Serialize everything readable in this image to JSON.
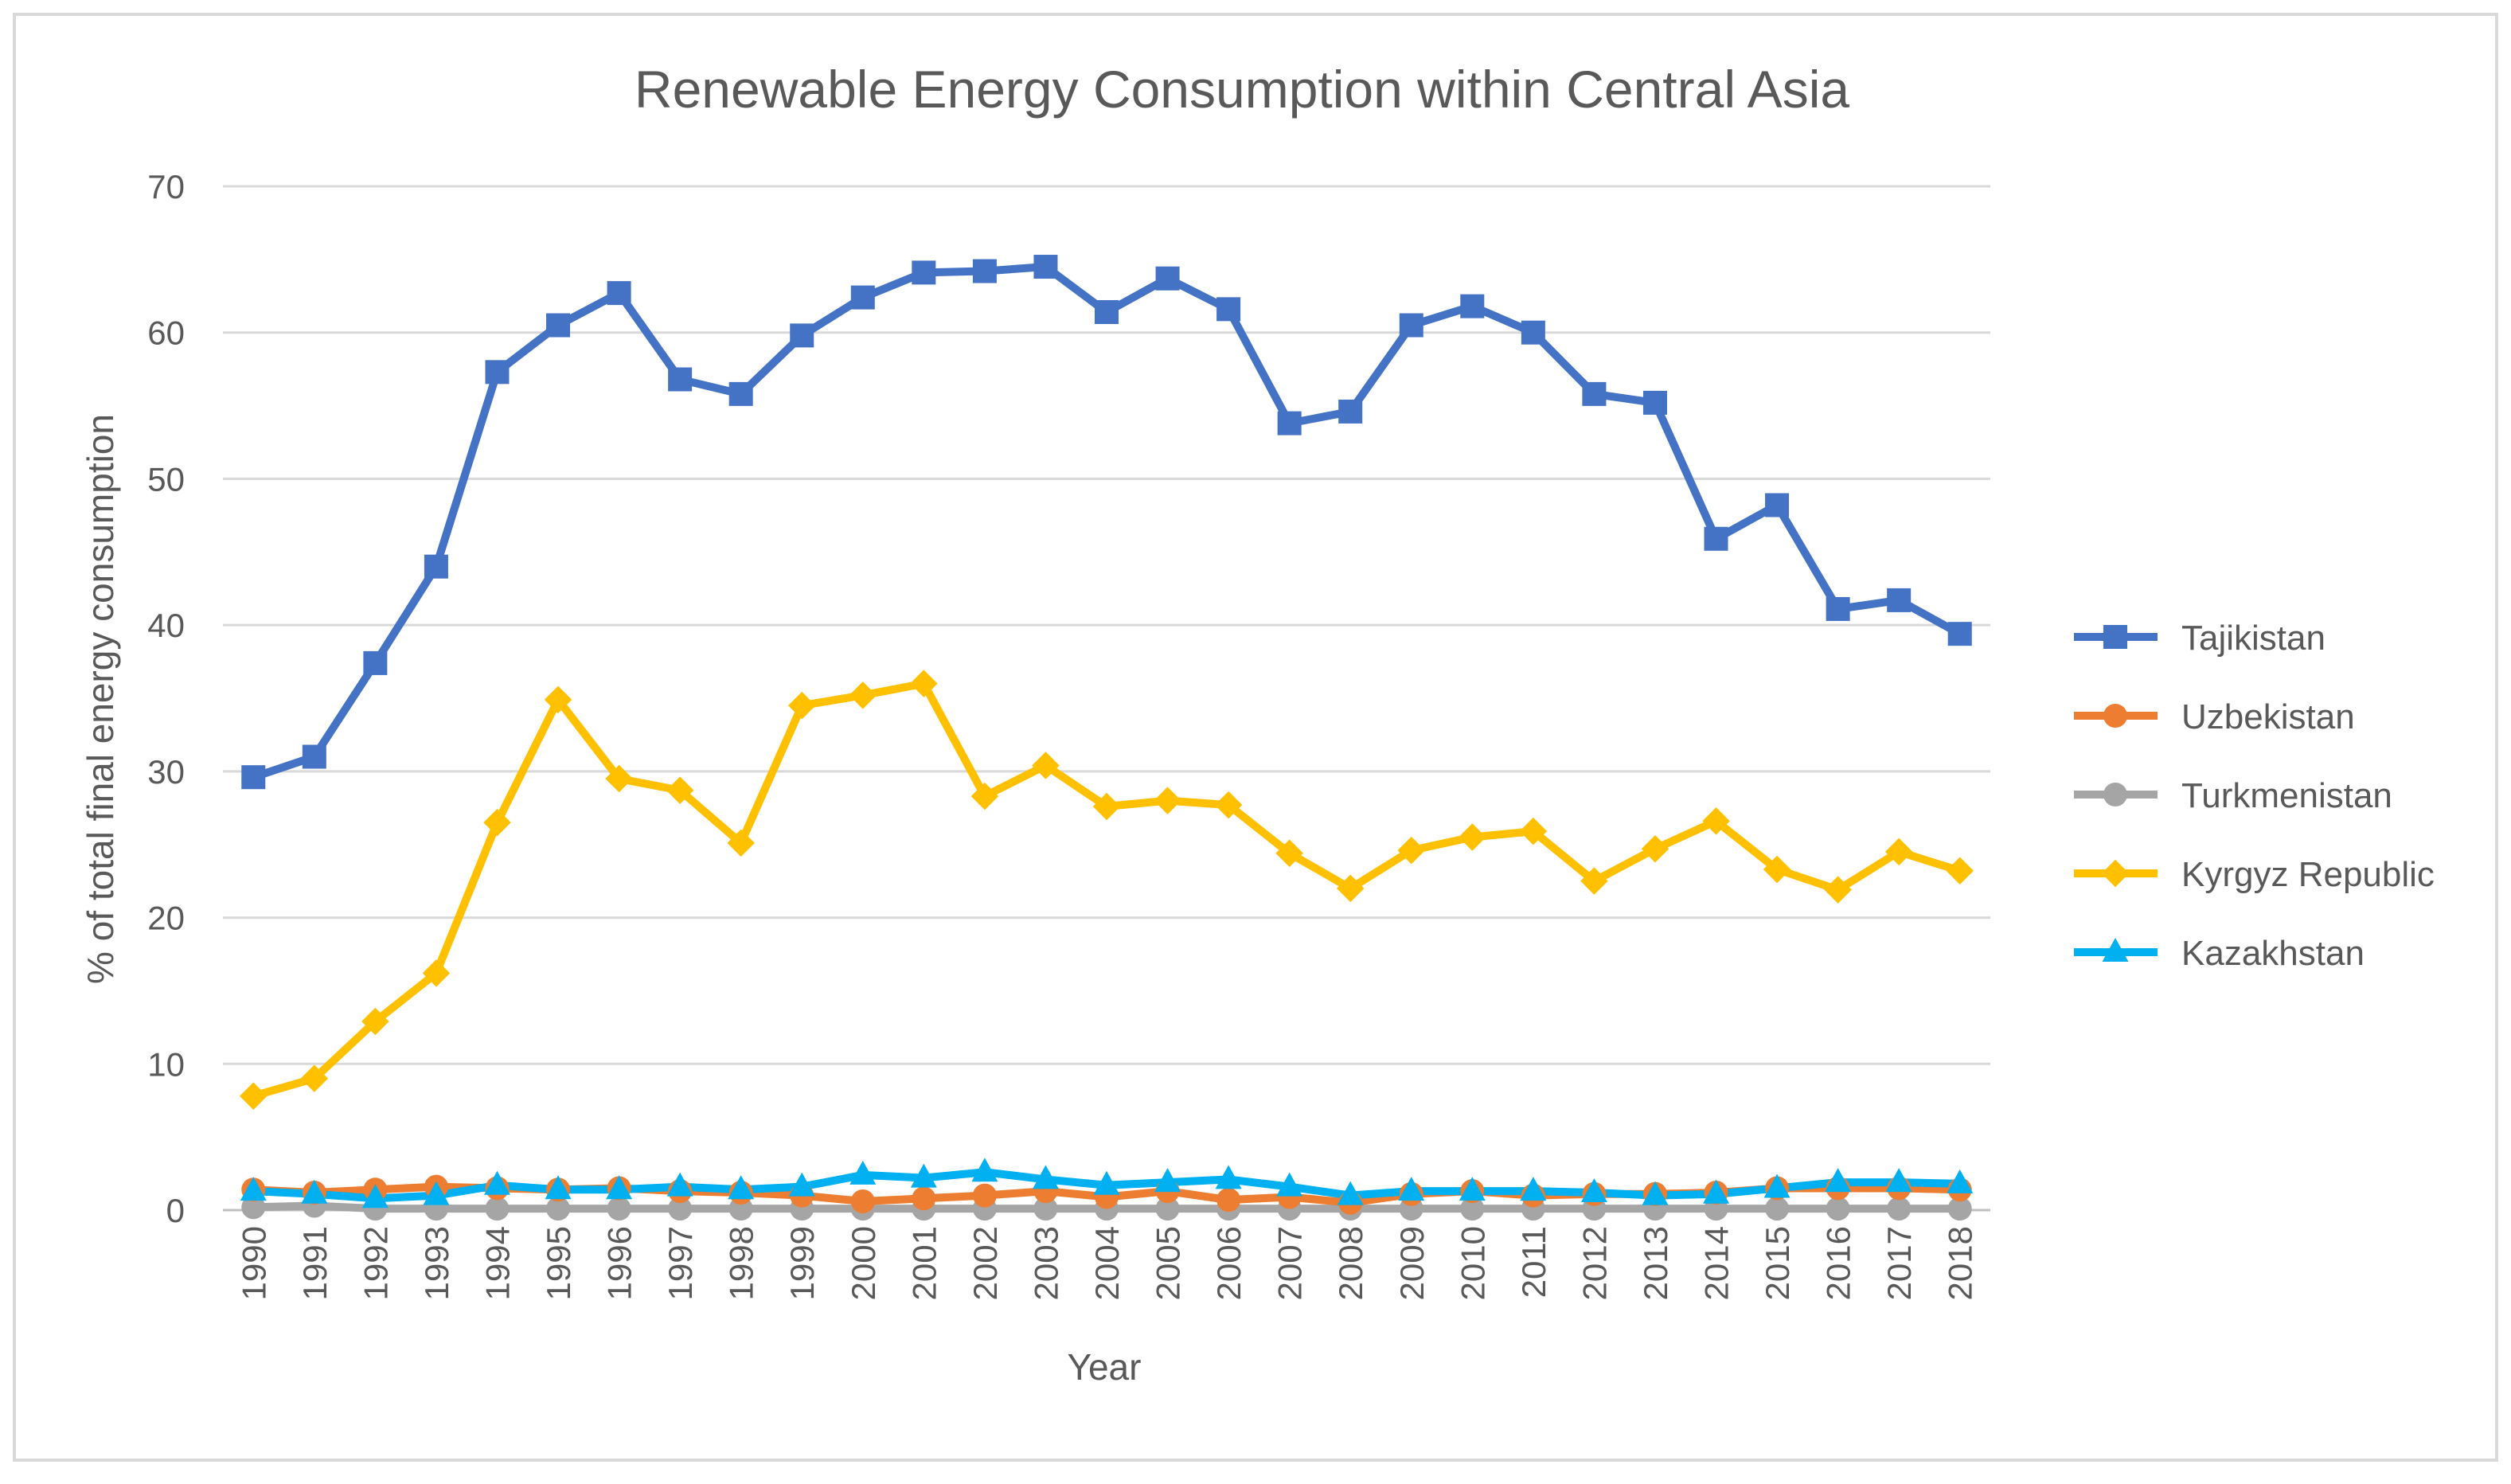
{
  "chart_data": {
    "type": "line",
    "title": "Renewable Energy Consumption within Central Asia",
    "xlabel": "Year",
    "ylabel": "% of total final energy consumption",
    "ylim": [
      0,
      70
    ],
    "yticks": [
      "0",
      "10",
      "20",
      "30",
      "40",
      "50",
      "60",
      "70"
    ],
    "grid": true,
    "legend_position": "right",
    "categories": [
      "1990",
      "1991",
      "1992",
      "1993",
      "1994",
      "1995",
      "1996",
      "1997",
      "1998",
      "1999",
      "2000",
      "2001",
      "2002",
      "2003",
      "2004",
      "2005",
      "2006",
      "2007",
      "2008",
      "2009",
      "2010",
      "2011",
      "2012",
      "2013",
      "2014",
      "2015",
      "2016",
      "2017",
      "2018"
    ],
    "series": [
      {
        "name": "Tajikistan",
        "color": "#4472c4",
        "marker": "square",
        "values": [
          29.6,
          31.0,
          37.4,
          44.0,
          57.3,
          60.5,
          62.7,
          56.8,
          55.8,
          59.8,
          62.4,
          64.1,
          64.2,
          64.5,
          61.4,
          63.7,
          61.6,
          53.8,
          54.6,
          60.5,
          61.8,
          60.0,
          55.8,
          55.2,
          45.9,
          48.2,
          41.1,
          41.7,
          39.4
        ]
      },
      {
        "name": "Uzbekistan",
        "color": "#ed7d31",
        "marker": "circle",
        "values": [
          1.4,
          1.2,
          1.4,
          1.6,
          1.5,
          1.4,
          1.5,
          1.3,
          1.2,
          1.0,
          0.6,
          0.8,
          1.0,
          1.3,
          0.9,
          1.3,
          0.7,
          0.9,
          0.5,
          1.1,
          1.3,
          1.0,
          1.1,
          1.1,
          1.2,
          1.5,
          1.5,
          1.5,
          1.4
        ]
      },
      {
        "name": "Turkmenistan",
        "color": "#a5a5a5",
        "marker": "circle",
        "values": [
          0.2,
          0.3,
          0.1,
          0.1,
          0.1,
          0.1,
          0.1,
          0.1,
          0.1,
          0.1,
          0.1,
          0.1,
          0.1,
          0.1,
          0.1,
          0.1,
          0.1,
          0.1,
          0.1,
          0.1,
          0.1,
          0.1,
          0.1,
          0.1,
          0.1,
          0.1,
          0.1,
          0.1,
          0.1
        ]
      },
      {
        "name": "Kyrgyz Republic",
        "color": "#ffc000",
        "marker": "diamond",
        "values": [
          7.8,
          9.0,
          12.9,
          16.2,
          26.5,
          34.9,
          29.5,
          28.7,
          25.1,
          34.5,
          35.2,
          36.0,
          28.3,
          30.4,
          27.6,
          28.0,
          27.7,
          24.4,
          22.0,
          24.6,
          25.5,
          25.9,
          22.5,
          24.7,
          26.6,
          23.3,
          21.9,
          24.5,
          23.2
        ]
      },
      {
        "name": "Kazakhstan",
        "color": "#00b0f0",
        "marker": "triangle",
        "values": [
          1.3,
          1.1,
          0.8,
          1.0,
          1.7,
          1.4,
          1.4,
          1.6,
          1.4,
          1.6,
          2.4,
          2.2,
          2.6,
          2.1,
          1.7,
          1.9,
          2.1,
          1.6,
          1.0,
          1.3,
          1.3,
          1.3,
          1.2,
          1.0,
          1.1,
          1.5,
          1.9,
          1.9,
          1.8
        ]
      }
    ]
  }
}
